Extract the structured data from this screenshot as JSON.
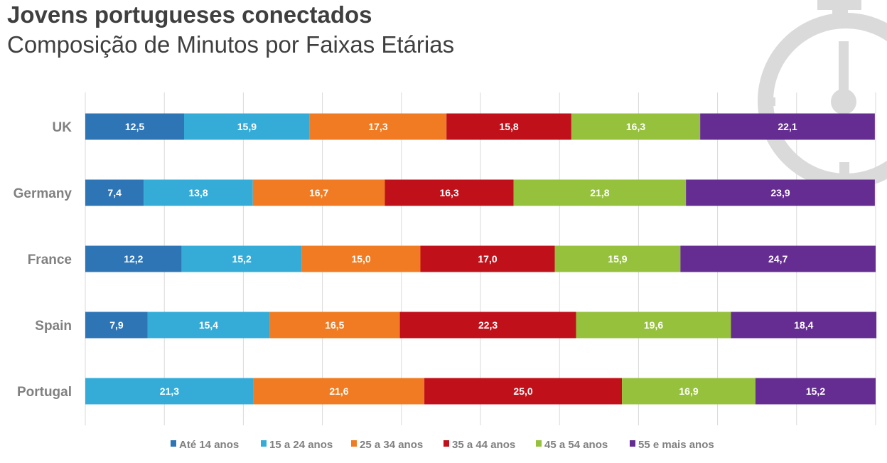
{
  "title": "Jovens portugueses conectados",
  "subtitle": "Composição de Minutos por Faixas Etárias",
  "chart_data": {
    "type": "bar",
    "stacked": true,
    "orientation": "horizontal",
    "title": "Jovens portugueses conectados",
    "subtitle": "Composição de Minutos por Faixas Etárias",
    "categories": [
      "UK",
      "Germany",
      "France",
      "Spain",
      "Portugal"
    ],
    "xlim": [
      0,
      100
    ],
    "grid": true,
    "legend_position": "bottom",
    "series": [
      {
        "name": "Até 14 anos",
        "color": "#2e75b6",
        "values": [
          12.5,
          7.4,
          12.2,
          7.9,
          0
        ],
        "labels": [
          "12,5",
          "7,4",
          "12,2",
          "7,9",
          ""
        ]
      },
      {
        "name": "15 a 24 anos",
        "color": "#35acd8",
        "values": [
          15.9,
          13.8,
          15.2,
          15.4,
          21.3
        ],
        "labels": [
          "15,9",
          "13,8",
          "15,2",
          "15,4",
          "21,3"
        ]
      },
      {
        "name": "25 a 34 anos",
        "color": "#f07b22",
        "values": [
          17.3,
          16.7,
          15.0,
          16.5,
          21.6
        ],
        "labels": [
          "17,3",
          "16,7",
          "15,0",
          "16,5",
          "21,6"
        ]
      },
      {
        "name": "35 a 44 anos",
        "color": "#c0111b",
        "values": [
          15.8,
          16.3,
          17.0,
          22.3,
          25.0
        ],
        "labels": [
          "15,8",
          "16,3",
          "17,0",
          "22,3",
          "25,0"
        ]
      },
      {
        "name": "45 a 54 anos",
        "color": "#96c13d",
        "values": [
          16.3,
          21.8,
          15.9,
          19.6,
          16.9
        ],
        "labels": [
          "16,3",
          "21,8",
          "15,9",
          "19,6",
          "16,9"
        ]
      },
      {
        "name": "55 e mais anos",
        "color": "#652d91",
        "values": [
          22.1,
          23.9,
          24.7,
          18.4,
          15.2
        ],
        "labels": [
          "22,1",
          "23,9",
          "24,7",
          "18,4",
          "15,2"
        ]
      }
    ]
  }
}
